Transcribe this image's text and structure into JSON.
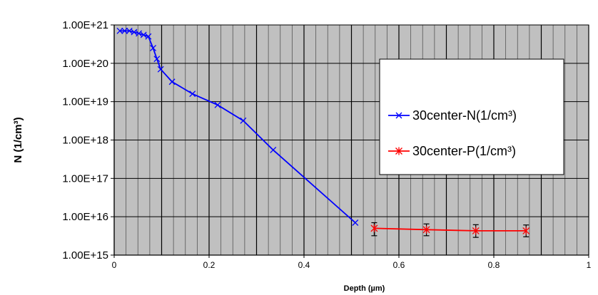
{
  "chart_data": {
    "type": "line",
    "xlabel": "Depth (µm)",
    "ylabel": "N (1/cm³)",
    "xlim": [
      0,
      1
    ],
    "ylim": [
      1000000000000000.0,
      1e+21
    ],
    "yscale": "log",
    "grid": true,
    "legend_position": "right",
    "x_ticks": [
      {
        "value": 0,
        "label": "0"
      },
      {
        "value": 0.2,
        "label": "0.2"
      },
      {
        "value": 0.4,
        "label": "0.4"
      },
      {
        "value": 0.6,
        "label": "0.6"
      },
      {
        "value": 0.8,
        "label": "0.8"
      },
      {
        "value": 1,
        "label": "1"
      }
    ],
    "y_ticks": [
      {
        "value": 1000000000000000.0,
        "label": "1.00E+15"
      },
      {
        "value": 1e+16,
        "label": "1.00E+16"
      },
      {
        "value": 1e+17,
        "label": "1.00E+17"
      },
      {
        "value": 1e+18,
        "label": "1.00E+18"
      },
      {
        "value": 1e+19,
        "label": "1.00E+19"
      },
      {
        "value": 1e+20,
        "label": "1.00E+20"
      },
      {
        "value": 1e+21,
        "label": "1.00E+21"
      }
    ],
    "series": [
      {
        "name": "30center-N(1/cm³)",
        "color": "#0000ff",
        "marker": "x",
        "x": [
          0.012,
          0.022,
          0.032,
          0.042,
          0.052,
          0.062,
          0.072,
          0.082,
          0.09,
          0.098,
          0.122,
          0.165,
          0.218,
          0.272,
          0.335,
          0.508
        ],
        "y": [
          7e+20,
          7e+20,
          7e+20,
          6.5e+20,
          6e+20,
          5.5e+20,
          5e+20,
          2.5e+20,
          1.3e+20,
          7e+19,
          3.3e+19,
          1.6e+19,
          8.2e+18,
          3.2e+18,
          5.5e+17,
          7000000000000000.0
        ]
      },
      {
        "name": "30center-P(1/cm³)",
        "color": "#ff0000",
        "marker": "*",
        "x": [
          0.548,
          0.658,
          0.762,
          0.868
        ],
        "y": [
          5000000000000000.0,
          4600000000000000.0,
          4300000000000000.0,
          4300000000000000.0
        ],
        "error": [
          [
            3200000000000000.0,
            7000000000000000.0
          ],
          [
            3200000000000000.0,
            6500000000000000.0
          ],
          [
            2900000000000000.0,
            6200000000000000.0
          ],
          [
            3000000000000000.0,
            6100000000000000.0
          ]
        ]
      }
    ]
  }
}
